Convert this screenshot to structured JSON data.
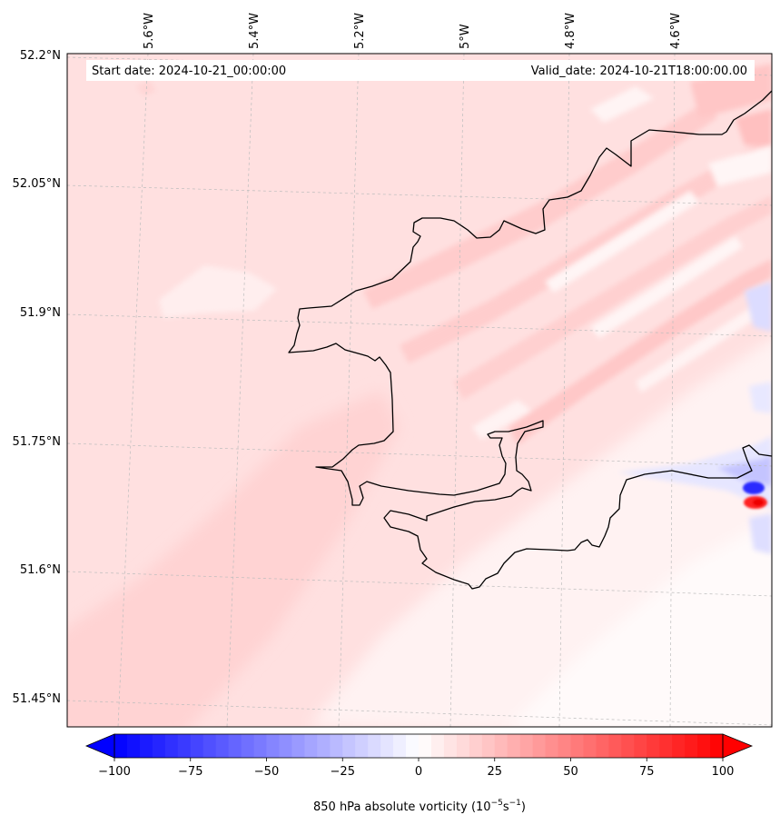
{
  "map": {
    "lat_labels": [
      "52.2°N",
      "52.05°N",
      "51.9°N",
      "51.75°N",
      "51.6°N",
      "51.45°N"
    ],
    "lon_labels": [
      "5.6°W",
      "5.4°W",
      "5.2°W",
      "5°W",
      "4.8°W",
      "4.6°W"
    ],
    "start_date": "Start date: 2024-10-21_00:00:00",
    "valid_date": "Valid_date: 2024-10-21T18:00:00.00",
    "colors": {
      "min": "#0000ff",
      "mid": "#ffffff",
      "max": "#ff0000",
      "coast": "#000000",
      "grid": "#b0b0b0"
    }
  },
  "colorbar": {
    "min": -100,
    "max": 100,
    "levels": 48,
    "ticks": [
      "−100",
      "−75",
      "−50",
      "−25",
      "0",
      "25",
      "50",
      "75",
      "100"
    ],
    "label_main": "850 hPa absolute vorticity (10",
    "label_exp1": "−5",
    "label_mid": "s",
    "label_exp2": "−1",
    "label_end": ")"
  }
}
